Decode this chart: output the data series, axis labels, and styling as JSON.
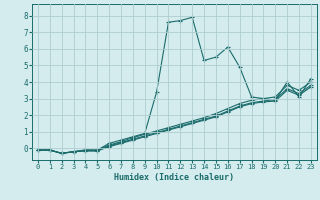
{
  "title": "",
  "xlabel": "Humidex (Indice chaleur)",
  "ylabel": "",
  "bg_color": "#d4ecee",
  "grid_color": "#aecdd0",
  "line_color": "#1a6b6b",
  "xlim": [
    -0.5,
    23.5
  ],
  "ylim": [
    -0.7,
    8.7
  ],
  "xticks": [
    0,
    1,
    2,
    3,
    4,
    5,
    6,
    7,
    8,
    9,
    10,
    11,
    12,
    13,
    14,
    15,
    16,
    17,
    18,
    19,
    20,
    21,
    22,
    23
  ],
  "yticks": [
    0,
    1,
    2,
    3,
    4,
    5,
    6,
    7,
    8
  ],
  "lines": [
    {
      "x": [
        0,
        1,
        2,
        3,
        4,
        5,
        6,
        7,
        8,
        9,
        10,
        11,
        12,
        13,
        14,
        15,
        16,
        17,
        18,
        19,
        20,
        21,
        22,
        23
      ],
      "y": [
        -0.1,
        -0.1,
        -0.3,
        -0.2,
        -0.1,
        -0.1,
        0.3,
        0.5,
        0.7,
        0.9,
        3.4,
        7.6,
        7.7,
        7.9,
        5.3,
        5.5,
        6.1,
        4.9,
        3.1,
        3.0,
        2.9,
        4.0,
        3.1,
        4.2
      ]
    },
    {
      "x": [
        0,
        1,
        2,
        3,
        4,
        5,
        6,
        7,
        8,
        9,
        10,
        11,
        12,
        13,
        14,
        15,
        16,
        17,
        18,
        19,
        20,
        21,
        22,
        23
      ],
      "y": [
        -0.1,
        -0.1,
        -0.3,
        -0.2,
        -0.1,
        -0.1,
        0.2,
        0.4,
        0.65,
        0.85,
        1.05,
        1.25,
        1.45,
        1.65,
        1.85,
        2.1,
        2.4,
        2.7,
        2.9,
        3.0,
        3.1,
        3.8,
        3.5,
        4.0
      ]
    },
    {
      "x": [
        0,
        1,
        2,
        3,
        4,
        5,
        6,
        7,
        8,
        9,
        10,
        11,
        12,
        13,
        14,
        15,
        16,
        17,
        18,
        19,
        20,
        21,
        22,
        23
      ],
      "y": [
        -0.1,
        -0.1,
        -0.3,
        -0.2,
        -0.15,
        -0.15,
        0.15,
        0.35,
        0.55,
        0.75,
        0.95,
        1.15,
        1.35,
        1.55,
        1.75,
        1.95,
        2.25,
        2.55,
        2.75,
        2.85,
        2.95,
        3.6,
        3.3,
        3.8
      ]
    },
    {
      "x": [
        0,
        1,
        2,
        3,
        4,
        5,
        6,
        7,
        8,
        9,
        10,
        11,
        12,
        13,
        14,
        15,
        16,
        17,
        18,
        19,
        20,
        21,
        22,
        23
      ],
      "y": [
        -0.1,
        -0.1,
        -0.3,
        -0.2,
        -0.15,
        -0.15,
        0.1,
        0.3,
        0.5,
        0.7,
        0.9,
        1.1,
        1.3,
        1.5,
        1.7,
        1.9,
        2.2,
        2.5,
        2.7,
        2.8,
        2.85,
        3.5,
        3.2,
        3.7
      ]
    }
  ]
}
